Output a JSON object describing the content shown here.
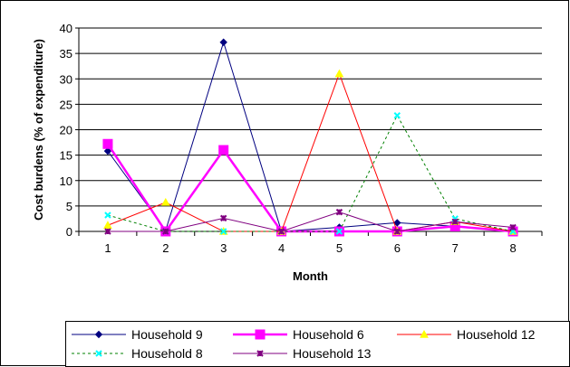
{
  "chart_data": {
    "type": "line",
    "title": "",
    "xlabel": "Month",
    "ylabel": "Cost burdens (% of expenditure)",
    "x": [
      1,
      2,
      3,
      4,
      5,
      6,
      7,
      8
    ],
    "ylim": [
      0,
      40
    ],
    "yticks": [
      0,
      5,
      10,
      15,
      20,
      25,
      30,
      35,
      40
    ],
    "grid": "horizontal",
    "legend_position": "bottom",
    "series": [
      {
        "name": "Household 9",
        "color": "#000080",
        "marker": "diamond",
        "line": "solid",
        "values": [
          15.8,
          0.2,
          37.2,
          0,
          0.8,
          1.7,
          1.0,
          0
        ]
      },
      {
        "name": "Household 6",
        "color": "#FF00FF",
        "marker": "square",
        "line": "solid",
        "values": [
          17.2,
          0,
          16.0,
          0,
          0,
          0,
          1.0,
          0
        ]
      },
      {
        "name": "Household 12",
        "color": "#FF0000",
        "marker": "triangle",
        "marker_color": "#FFFF00",
        "line": "solid",
        "values": [
          1.2,
          5.7,
          0,
          0,
          31.0,
          0,
          1.9,
          0
        ]
      },
      {
        "name": "Household 8",
        "color": "#008000",
        "marker": "x",
        "marker_color": "#00FFFF",
        "line": "dashed",
        "values": [
          3.2,
          0,
          0,
          0,
          0,
          22.8,
          2.5,
          0
        ]
      },
      {
        "name": "Household 13",
        "color": "#800080",
        "marker": "asterisk",
        "line": "solid",
        "values": [
          0,
          0,
          2.6,
          0,
          3.8,
          0,
          1.9,
          0.8
        ]
      }
    ]
  }
}
